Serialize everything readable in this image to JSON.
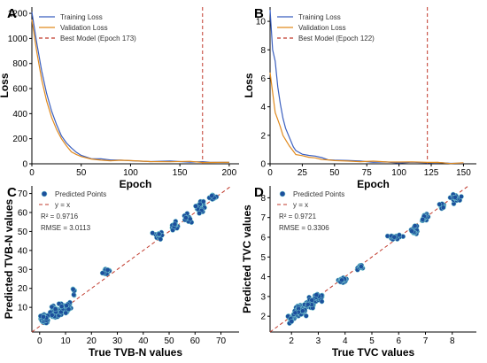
{
  "colors": {
    "training": "#3a5fbf",
    "validation": "#e08a1e",
    "best": "#c0392b",
    "scatter_fill": "#1c4f9c",
    "scatter_edge": "#7fd6d6",
    "axis": "#000000"
  },
  "chart_data": [
    {
      "panel": "A",
      "type": "line",
      "xlabel": "Epoch",
      "ylabel": "Loss",
      "xlim": [
        0,
        210
      ],
      "ylim": [
        0,
        1250
      ],
      "xticks": [
        0,
        50,
        100,
        150,
        200
      ],
      "yticks": [
        0,
        200,
        400,
        600,
        800,
        1000,
        1200
      ],
      "grid": false,
      "legend_position": "top-left",
      "legend": [
        "Training Loss",
        "Validation Loss",
        "Best Model (Epoch 173)"
      ],
      "best_epoch": 173,
      "series": [
        {
          "name": "Training Loss",
          "x": [
            0,
            5,
            10,
            15,
            20,
            25,
            30,
            35,
            40,
            45,
            50,
            60,
            70,
            80,
            90,
            100,
            120,
            140,
            160,
            173,
            180,
            200
          ],
          "values": [
            1210,
            960,
            740,
            560,
            420,
            310,
            225,
            165,
            120,
            90,
            65,
            45,
            35,
            28,
            25,
            22,
            20,
            18,
            17,
            16,
            16,
            15
          ]
        },
        {
          "name": "Validation Loss",
          "x": [
            0,
            5,
            10,
            15,
            20,
            25,
            30,
            35,
            40,
            45,
            50,
            60,
            70,
            80,
            90,
            100,
            120,
            140,
            160,
            173,
            180,
            200
          ],
          "values": [
            1150,
            890,
            670,
            500,
            370,
            270,
            195,
            140,
            100,
            75,
            55,
            40,
            32,
            26,
            23,
            21,
            19,
            17,
            16,
            15,
            15,
            14
          ]
        }
      ]
    },
    {
      "panel": "B",
      "type": "line",
      "xlabel": "Epoch",
      "ylabel": "Loss",
      "xlim": [
        0,
        160
      ],
      "ylim": [
        0,
        11
      ],
      "xticks": [
        0,
        25,
        50,
        75,
        100,
        125,
        150
      ],
      "yticks": [
        0,
        2,
        4,
        6,
        8,
        10
      ],
      "grid": false,
      "legend_position": "top-left",
      "legend": [
        "Training Loss",
        "Validation Loss",
        "Best Model (Epoch 122)"
      ],
      "best_epoch": 122,
      "series": [
        {
          "name": "Training Loss",
          "x": [
            0,
            2,
            4,
            6,
            8,
            10,
            12,
            15,
            18,
            20,
            25,
            30,
            35,
            40,
            45,
            50,
            60,
            70,
            80,
            90,
            100,
            110,
            122,
            130,
            140,
            150
          ],
          "values": [
            10.8,
            8.0,
            7.2,
            5.4,
            4.2,
            3.2,
            2.5,
            1.8,
            1.2,
            0.9,
            0.7,
            0.6,
            0.5,
            0.4,
            0.3,
            0.25,
            0.2,
            0.17,
            0.15,
            0.12,
            0.1,
            0.09,
            0.08,
            0.07,
            0.06,
            0.05
          ]
        },
        {
          "name": "Validation Loss",
          "x": [
            0,
            2,
            4,
            6,
            8,
            10,
            12,
            15,
            18,
            20,
            25,
            30,
            35,
            40,
            45,
            50,
            60,
            70,
            80,
            90,
            100,
            110,
            122,
            130,
            140,
            150
          ],
          "values": [
            6.4,
            5.0,
            3.6,
            3.1,
            2.6,
            2.0,
            1.7,
            1.2,
            0.9,
            0.7,
            0.6,
            0.5,
            0.4,
            0.35,
            0.3,
            0.25,
            0.2,
            0.18,
            0.15,
            0.13,
            0.12,
            0.1,
            0.09,
            0.08,
            0.07,
            0.06
          ]
        }
      ]
    },
    {
      "panel": "C",
      "type": "scatter",
      "xlabel": "True TVB-N values",
      "ylabel": "Predicted TVB-N values",
      "xlim": [
        -3,
        77
      ],
      "ylim": [
        -3,
        74
      ],
      "xticks": [
        0,
        10,
        20,
        30,
        40,
        50,
        60,
        70
      ],
      "yticks": [
        10,
        20,
        30,
        40,
        50,
        60,
        70
      ],
      "grid": false,
      "legend_position": "top-left",
      "legend": [
        "Predicted Points",
        "y = x"
      ],
      "r2": "R² = 0.9716",
      "rmse": "RMSE = 3.0113",
      "clusters": [
        {
          "center": [
            2,
            4
          ],
          "count": 40,
          "spread": [
            1.6,
            2.2
          ]
        },
        {
          "center": [
            6,
            7
          ],
          "count": 45,
          "spread": [
            2.2,
            3.0
          ]
        },
        {
          "center": [
            10,
            10
          ],
          "count": 30,
          "spread": [
            2.2,
            3.5
          ]
        },
        {
          "center": [
            13,
            18
          ],
          "count": 6,
          "spread": [
            0.8,
            3.0
          ]
        },
        {
          "center": [
            26,
            29
          ],
          "count": 20,
          "spread": [
            1.6,
            2.2
          ]
        },
        {
          "center": [
            46,
            48
          ],
          "count": 18,
          "spread": [
            1.4,
            2.0
          ]
        },
        {
          "center": [
            52,
            53
          ],
          "count": 18,
          "spread": [
            1.2,
            2.0
          ]
        },
        {
          "center": [
            57,
            57
          ],
          "count": 14,
          "spread": [
            1.2,
            2.2
          ]
        },
        {
          "center": [
            62,
            63
          ],
          "count": 35,
          "spread": [
            1.2,
            3.2
          ]
        },
        {
          "center": [
            67,
            68
          ],
          "count": 14,
          "spread": [
            1.5,
            1.4
          ]
        }
      ]
    },
    {
      "panel": "D",
      "type": "scatter",
      "xlabel": "True TVC values",
      "ylabel": "Predicted TVC values",
      "xlim": [
        1.2,
        8.9
      ],
      "ylim": [
        1.2,
        8.6
      ],
      "xticks": [
        2,
        3,
        4,
        5,
        6,
        7,
        8
      ],
      "yticks": [
        2,
        3,
        4,
        5,
        6,
        7,
        8
      ],
      "grid": false,
      "legend_position": "top-left",
      "legend": [
        "Predicted Points",
        "y = x"
      ],
      "r2": "R² = 0.9721",
      "rmse": "RMSE = 0.3306",
      "clusters": [
        {
          "center": [
            2.0,
            1.9
          ],
          "count": 25,
          "spread": [
            0.15,
            0.15
          ]
        },
        {
          "center": [
            2.3,
            2.3
          ],
          "count": 50,
          "spread": [
            0.22,
            0.22
          ]
        },
        {
          "center": [
            2.7,
            2.6
          ],
          "count": 50,
          "spread": [
            0.2,
            0.22
          ]
        },
        {
          "center": [
            3.0,
            2.9
          ],
          "count": 35,
          "spread": [
            0.18,
            0.2
          ]
        },
        {
          "center": [
            3.9,
            3.8
          ],
          "count": 20,
          "spread": [
            0.2,
            0.12
          ]
        },
        {
          "center": [
            4.6,
            4.5
          ],
          "count": 12,
          "spread": [
            0.12,
            0.12
          ]
        },
        {
          "center": [
            5.9,
            6.0
          ],
          "count": 20,
          "spread": [
            0.22,
            0.12
          ]
        },
        {
          "center": [
            6.6,
            6.4
          ],
          "count": 18,
          "spread": [
            0.12,
            0.25
          ]
        },
        {
          "center": [
            7.0,
            7.0
          ],
          "count": 18,
          "spread": [
            0.15,
            0.15
          ]
        },
        {
          "center": [
            7.6,
            7.6
          ],
          "count": 14,
          "spread": [
            0.12,
            0.12
          ]
        },
        {
          "center": [
            8.1,
            8.0
          ],
          "count": 20,
          "spread": [
            0.15,
            0.15
          ]
        }
      ]
    }
  ]
}
